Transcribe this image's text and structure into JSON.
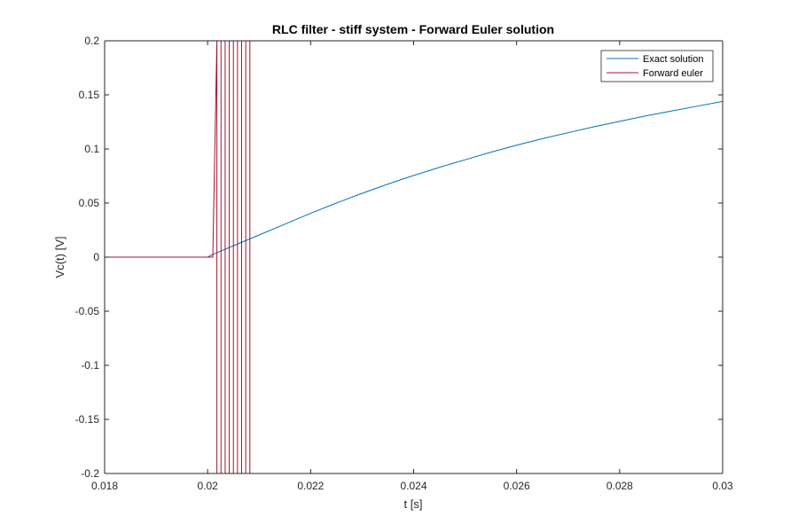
{
  "chart_data": {
    "type": "line",
    "title": "RLC filter - stiff system - Forward Euler solution",
    "xlabel": "t [s]",
    "ylabel": "Vc(t) [V]",
    "xlim": [
      0.018,
      0.03
    ],
    "ylim": [
      -0.2,
      0.2
    ],
    "xticks": [
      0.018,
      0.02,
      0.022,
      0.024,
      0.026,
      0.028,
      0.03
    ],
    "xtick_labels": [
      "0.018",
      "0.02",
      "0.022",
      "0.024",
      "0.026",
      "0.028",
      "0.03"
    ],
    "yticks": [
      -0.2,
      -0.15,
      -0.1,
      -0.05,
      0,
      0.05,
      0.1,
      0.15,
      0.2
    ],
    "ytick_labels": [
      "-0.2",
      "-0.15",
      "-0.1",
      "-0.05",
      "0",
      "0.05",
      "0.1",
      "0.15",
      "0.2"
    ],
    "grid": false,
    "legend_position": "top-right",
    "series": [
      {
        "name": "Exact solution",
        "color": "#0072BD",
        "x": [
          0.018,
          0.02,
          0.0201,
          0.0203,
          0.0206,
          0.021,
          0.0215,
          0.022,
          0.0225,
          0.023,
          0.0235,
          0.024,
          0.0245,
          0.025,
          0.0255,
          0.026,
          0.0265,
          0.027,
          0.0275,
          0.028,
          0.0285,
          0.029,
          0.0295,
          0.03
        ],
        "y": [
          0,
          0,
          0.0025,
          0.0065,
          0.0125,
          0.0205,
          0.0305,
          0.0405,
          0.05,
          0.059,
          0.0675,
          0.0755,
          0.083,
          0.09,
          0.097,
          0.1035,
          0.1095,
          0.115,
          0.1205,
          0.1255,
          0.1305,
          0.135,
          0.1395,
          0.144
        ]
      },
      {
        "name": "Forward euler",
        "color": "#A2142F",
        "x": [
          0.018,
          0.0201,
          0.02018,
          0.02018,
          0.02026,
          0.02026,
          0.02034,
          0.02034,
          0.02042,
          0.02042,
          0.0205,
          0.0205,
          0.02058,
          0.02058,
          0.02066,
          0.02066,
          0.02074,
          0.02074,
          0.02082,
          0.02082,
          0.0209
        ],
        "y": [
          0,
          0,
          0.2,
          -0.2,
          -0.2,
          0.2,
          0.2,
          -0.2,
          -0.2,
          0.2,
          0.2,
          -0.2,
          -0.2,
          0.2,
          0.2,
          -0.2,
          -0.2,
          0.2,
          0.2,
          -0.2,
          -0.2
        ]
      }
    ]
  }
}
